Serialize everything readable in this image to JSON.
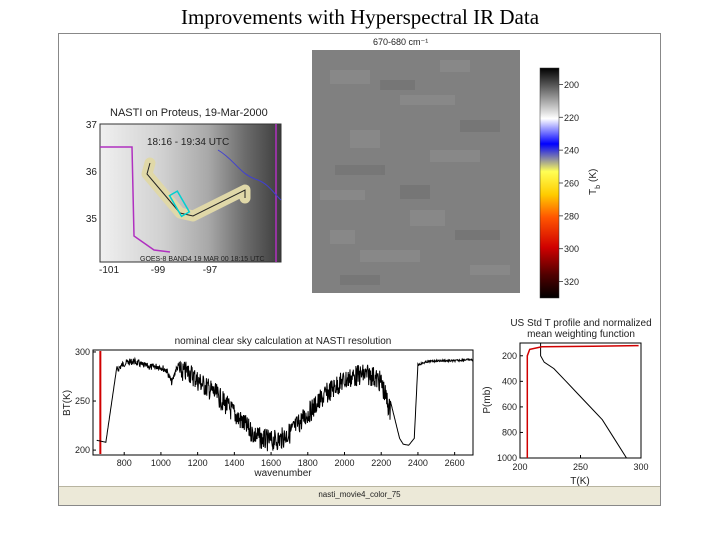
{
  "slide_title": "Improvements with Hyperspectral IR Data",
  "status_caption": "nasti_movie4_color_75",
  "colors": {
    "frame_bg": "#ffffff",
    "spectrum_line": "#000000",
    "marker_line": "#d00000",
    "map_gray": "#808080"
  },
  "chart_data": [
    {
      "type": "map",
      "title": "NASTI on Proteus, 19-Mar-2000",
      "annotation": "18:16 - 19:34 UTC",
      "footer": "GOES-8 BAND4 19 MAR 00 18:15 UTC",
      "x_ticks": [
        "-101",
        "-99",
        "-97"
      ],
      "y_ticks": [
        "37",
        "36",
        "35"
      ]
    },
    {
      "type": "heatmap",
      "title": "670-680 cm⁻¹",
      "colorbar_label": "T",
      "colorbar_label_sub": "b",
      "colorbar_unit": "(K)",
      "colorbar_ticks": [
        200,
        220,
        240,
        260,
        280,
        300,
        320
      ],
      "colorbar_range": [
        190,
        330
      ]
    },
    {
      "type": "line",
      "title": "nominal clear sky calculation at NASTI resolution",
      "xlabel": "wavenumber",
      "ylabel": "BT(K)",
      "xlim": [
        630,
        2700
      ],
      "ylim": [
        195,
        302
      ],
      "xticks": [
        800,
        1000,
        1200,
        1400,
        1600,
        1800,
        2000,
        2200,
        2400,
        2600
      ],
      "yticks": [
        200,
        250,
        300
      ],
      "marker_x": 670,
      "x": [
        650,
        700,
        760,
        800,
        850,
        900,
        950,
        980,
        1000,
        1030,
        1060,
        1080,
        1100,
        1150,
        1200,
        1250,
        1300,
        1350,
        1400,
        1450,
        1500,
        1550,
        1600,
        1650,
        1700,
        1750,
        1800,
        1850,
        1900,
        1950,
        2000,
        2050,
        2100,
        2150,
        2200,
        2250,
        2300,
        2320,
        2350,
        2380,
        2400,
        2450,
        2500,
        2550,
        2600,
        2650,
        2700
      ],
      "y": [
        210,
        208,
        285,
        292,
        294,
        290,
        288,
        289,
        288,
        285,
        272,
        285,
        290,
        291,
        282,
        275,
        268,
        258,
        248,
        238,
        228,
        222,
        220,
        222,
        228,
        238,
        248,
        258,
        268,
        276,
        282,
        286,
        288,
        287,
        280,
        250,
        212,
        206,
        205,
        212,
        288,
        291,
        292,
        292,
        292,
        293,
        293
      ]
    },
    {
      "type": "line",
      "title": "US Std T profile and normalized",
      "subtitle": "mean weighting function",
      "xlabel": "T(K)",
      "ylabel": "P(mb)",
      "xlim": [
        200,
        300
      ],
      "ylim": [
        1000,
        100
      ],
      "xticks": [
        200,
        250,
        300
      ],
      "yticks": [
        200,
        400,
        600,
        800,
        1000
      ],
      "series": [
        {
          "t": [
            217,
            217,
            217,
            220,
            228,
            238,
            248,
            258,
            268,
            278,
            288
          ],
          "p": [
            100,
            150,
            200,
            250,
            300,
            400,
            500,
            600,
            700,
            850,
            1000
          ]
        },
        {
          "t": [
            206,
            206,
            206,
            208,
            218,
            260,
            298
          ],
          "p": [
            1000,
            400,
            200,
            150,
            130,
            125,
            120
          ]
        }
      ]
    }
  ]
}
